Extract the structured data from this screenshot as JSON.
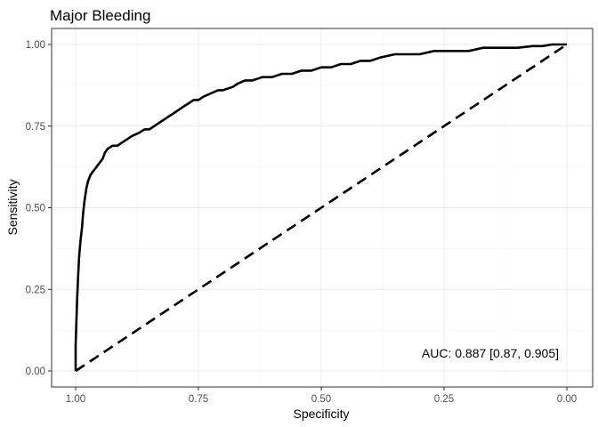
{
  "chart_data": {
    "type": "line",
    "title": "Major Bleeding",
    "xlabel": "Specificity",
    "ylabel": "Sensitivity",
    "x_reversed": true,
    "xlim": [
      1.0,
      0.0
    ],
    "ylim": [
      0.0,
      1.0
    ],
    "x_ticks": [
      "1.00",
      "0.75",
      "0.50",
      "0.25",
      "0.00"
    ],
    "y_ticks": [
      "0.00",
      "0.25",
      "0.50",
      "0.75",
      "1.00"
    ],
    "grid": true,
    "annotation": "AUC: 0.887 [0.87, 0.905]",
    "series": [
      {
        "style": "solid",
        "x": [
          1.0,
          1.0,
          0.997,
          0.995,
          0.993,
          0.99,
          0.987,
          0.985,
          0.982,
          0.978,
          0.975,
          0.97,
          0.965,
          0.96,
          0.955,
          0.95,
          0.945,
          0.94,
          0.935,
          0.925,
          0.915,
          0.905,
          0.895,
          0.885,
          0.87,
          0.86,
          0.85,
          0.84,
          0.83,
          0.82,
          0.81,
          0.8,
          0.79,
          0.78,
          0.77,
          0.76,
          0.75,
          0.74,
          0.725,
          0.71,
          0.7,
          0.68,
          0.67,
          0.655,
          0.64,
          0.62,
          0.6,
          0.58,
          0.56,
          0.54,
          0.52,
          0.5,
          0.48,
          0.46,
          0.44,
          0.42,
          0.4,
          0.38,
          0.35,
          0.32,
          0.3,
          0.27,
          0.25,
          0.22,
          0.2,
          0.17,
          0.15,
          0.12,
          0.1,
          0.07,
          0.05,
          0.03,
          0.015,
          0.0
        ],
        "y": [
          0.0,
          0.08,
          0.22,
          0.29,
          0.35,
          0.4,
          0.44,
          0.48,
          0.52,
          0.56,
          0.58,
          0.6,
          0.61,
          0.62,
          0.63,
          0.64,
          0.65,
          0.67,
          0.68,
          0.69,
          0.69,
          0.7,
          0.71,
          0.72,
          0.73,
          0.74,
          0.74,
          0.75,
          0.76,
          0.77,
          0.78,
          0.79,
          0.8,
          0.81,
          0.82,
          0.83,
          0.83,
          0.84,
          0.85,
          0.86,
          0.86,
          0.87,
          0.88,
          0.89,
          0.89,
          0.9,
          0.9,
          0.91,
          0.91,
          0.92,
          0.92,
          0.93,
          0.93,
          0.94,
          0.94,
          0.95,
          0.95,
          0.96,
          0.97,
          0.97,
          0.97,
          0.98,
          0.98,
          0.98,
          0.98,
          0.99,
          0.99,
          0.99,
          0.99,
          0.995,
          0.995,
          1.0,
          1.0,
          1.0
        ]
      },
      {
        "style": "dashed",
        "x": [
          1.0,
          0.0
        ],
        "y": [
          0.0,
          1.0
        ]
      }
    ]
  }
}
